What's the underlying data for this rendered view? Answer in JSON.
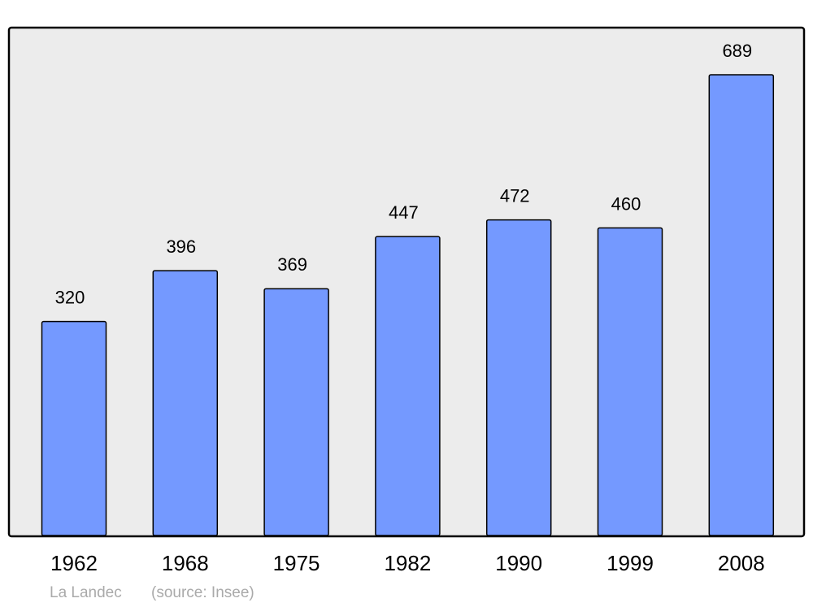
{
  "chart_data": {
    "type": "bar",
    "categories": [
      "1962",
      "1968",
      "1975",
      "1982",
      "1990",
      "1999",
      "2008"
    ],
    "values": [
      320,
      396,
      369,
      447,
      472,
      460,
      689
    ],
    "color": "#7499ff",
    "caption": "La Landec",
    "source": "(source: Insee)"
  }
}
